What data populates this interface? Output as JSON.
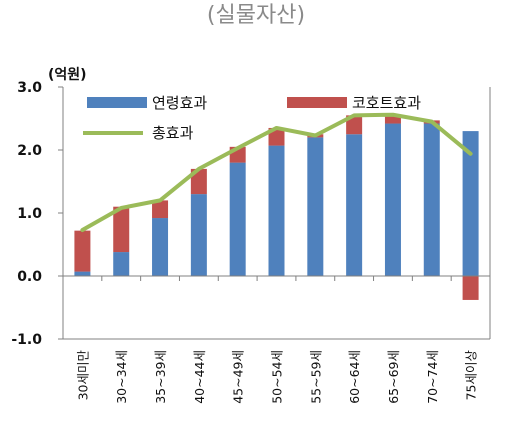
{
  "chart_data": {
    "type": "bar",
    "stacked": true,
    "title": "(실물자산)",
    "ylabel": "(억원)",
    "xlabel": "",
    "ylim": [
      -1.0,
      3.0
    ],
    "yticks": [
      "3.0",
      "2.0",
      "1.0",
      "0.0",
      "-1.0"
    ],
    "categories": [
      "30세미만",
      "30~34세",
      "35~39세",
      "40~44세",
      "45~49세",
      "50~54세",
      "55~59세",
      "60~64세",
      "65~69세",
      "70~74세",
      "75세이상"
    ],
    "series": [
      {
        "name": "연령효과",
        "kind": "bar",
        "color": "#4f81bd",
        "values": [
          0.07,
          0.38,
          0.92,
          1.3,
          1.8,
          2.07,
          2.2,
          2.25,
          2.42,
          2.42,
          2.3
        ]
      },
      {
        "name": "코호트효과",
        "kind": "bar",
        "color": "#c0504d",
        "values": [
          0.65,
          0.72,
          0.28,
          0.4,
          0.25,
          0.28,
          0.05,
          0.3,
          0.13,
          0.05,
          -0.38
        ]
      },
      {
        "name": "총효과",
        "kind": "line",
        "color": "#9bbb59",
        "values": [
          0.73,
          1.08,
          1.2,
          1.7,
          2.03,
          2.35,
          2.23,
          2.55,
          2.56,
          2.45,
          1.94
        ]
      }
    ],
    "grid": false,
    "legend": "top"
  }
}
